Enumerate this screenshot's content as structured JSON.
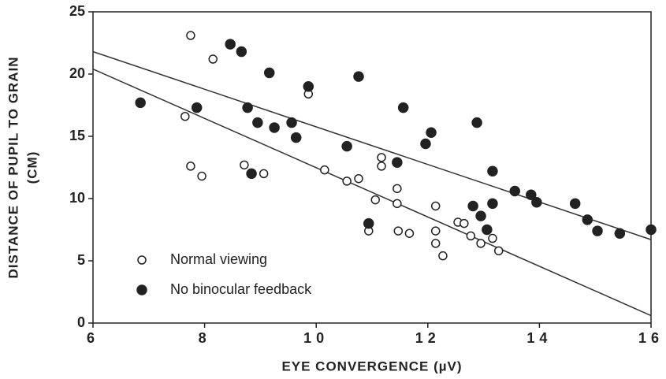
{
  "chart_data": {
    "type": "scatter",
    "xlabel": "EYE CONVERGENCE  (µV)",
    "ylabel": [
      "DISTANCE OF PUPIL TO GRAIN",
      "(CM)"
    ],
    "xlim": [
      6,
      16
    ],
    "xticks": [
      6,
      8,
      10,
      12,
      14,
      16
    ],
    "ylim": [
      0,
      25
    ],
    "yticks": [
      0,
      5,
      10,
      15,
      20,
      25
    ],
    "legend": "lower left",
    "series": [
      {
        "name": "Normal viewing",
        "color": "#222222",
        "marker": "open",
        "x": [
          7.75,
          8.15,
          7.65,
          7.75,
          7.95,
          8.71,
          9.06,
          9.86,
          10.15,
          10.55,
          10.76,
          11.17,
          11.17,
          11.06,
          11.45,
          11.45,
          10.94,
          11.47,
          11.67,
          12.14,
          12.14,
          12.14,
          12.27,
          12.54,
          12.65,
          12.77,
          12.95,
          13.16,
          13.27
        ],
        "values": [
          23.1,
          21.2,
          16.6,
          12.6,
          11.8,
          12.7,
          12.0,
          18.4,
          12.3,
          11.4,
          11.6,
          13.3,
          12.6,
          9.9,
          10.8,
          9.6,
          7.4,
          7.4,
          7.2,
          9.4,
          7.4,
          6.4,
          5.4,
          8.1,
          8.0,
          7.0,
          6.4,
          6.8,
          5.8
        ]
      },
      {
        "name": "No binocular feedback",
        "color": "#222222",
        "marker": "filled",
        "x": [
          6.85,
          8.46,
          8.66,
          7.86,
          8.77,
          9.16,
          8.95,
          9.25,
          9.56,
          9.64,
          8.84,
          9.86,
          10.76,
          10.55,
          11.56,
          11.45,
          10.94,
          11.96,
          12.06,
          12.88,
          13.16,
          12.81,
          12.95,
          13.16,
          13.06,
          13.56,
          13.85,
          13.95,
          14.64,
          14.86,
          15.04,
          15.44,
          16.0
        ],
        "values": [
          17.7,
          22.4,
          21.8,
          17.3,
          17.3,
          20.1,
          16.1,
          15.7,
          16.1,
          14.9,
          12.0,
          19.0,
          19.8,
          14.2,
          17.3,
          12.9,
          8.0,
          14.4,
          15.3,
          16.1,
          12.2,
          9.4,
          8.6,
          9.6,
          7.5,
          10.6,
          10.3,
          9.7,
          9.6,
          8.3,
          7.4,
          7.2,
          7.5
        ]
      }
    ],
    "fit_lines": [
      {
        "x": [
          6,
          16
        ],
        "y": [
          21.8,
          6.7
        ]
      },
      {
        "x": [
          6,
          16
        ],
        "y": [
          20.4,
          0.6
        ]
      }
    ]
  }
}
